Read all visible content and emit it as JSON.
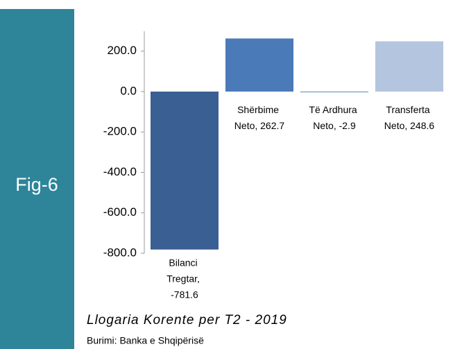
{
  "chart_data": {
    "type": "bar",
    "badge": "Fig-6",
    "title": "Llogaria Korente per T2 - 2019",
    "source": "Burimi: Banka e Shqipërisë",
    "values": [
      -781.6,
      262.7,
      -2.9,
      248.6
    ],
    "value_labels": [
      "Bilanci Tregtar, -781.6",
      "Shërbime Neto, 262.7",
      "Të Ardhura Neto, -2.9",
      "Transferta Neto, 248.6"
    ],
    "colors": [
      "#3a5f93",
      "#4a7ab8",
      "#5585c6",
      "#b4c5e0"
    ],
    "ylim": [
      -800,
      300
    ],
    "yticks": [
      {
        "value": -800,
        "label": "-800.0"
      },
      {
        "value": -600,
        "label": "-600.0"
      },
      {
        "value": -400,
        "label": "-400.0"
      },
      {
        "value": -200,
        "label": "-200.0"
      },
      {
        "value": 0,
        "label": "0.0"
      },
      {
        "value": 200,
        "label": "200.0"
      }
    ],
    "grid": false
  }
}
